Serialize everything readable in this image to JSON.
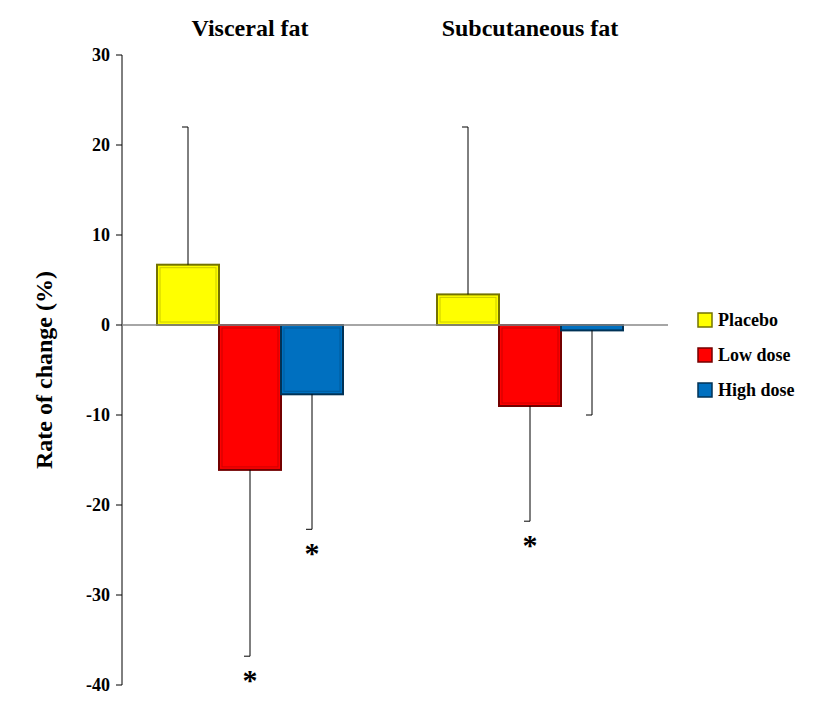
{
  "chart_data": {
    "type": "bar",
    "categories": [
      "Visceral fat",
      "Subcutaneous fat"
    ],
    "y_label": "Rate of change (%)",
    "series": [
      {
        "name": "Placebo",
        "color": "#ffff00",
        "values": [
          6.7,
          3.4
        ],
        "error": [
          15.3,
          18.6
        ]
      },
      {
        "name": "Low dose",
        "color": "#ff0000",
        "values": [
          -16.1,
          -9.0
        ],
        "error": [
          20.7,
          12.8
        ]
      },
      {
        "name": "High dose",
        "color": "#0070c0",
        "values": [
          -7.7,
          -0.6
        ],
        "error": [
          15.0,
          9.4
        ]
      }
    ],
    "ylim": [
      -40,
      30
    ],
    "yticks": [
      -40,
      -30,
      -20,
      -10,
      0,
      10,
      20,
      30
    ],
    "grid": false,
    "legend": "right",
    "annotations": [
      {
        "text": "*",
        "series": 1,
        "category": 0
      },
      {
        "text": "*",
        "series": 2,
        "category": 0
      },
      {
        "text": "*",
        "series": 1,
        "category": 1
      }
    ]
  }
}
